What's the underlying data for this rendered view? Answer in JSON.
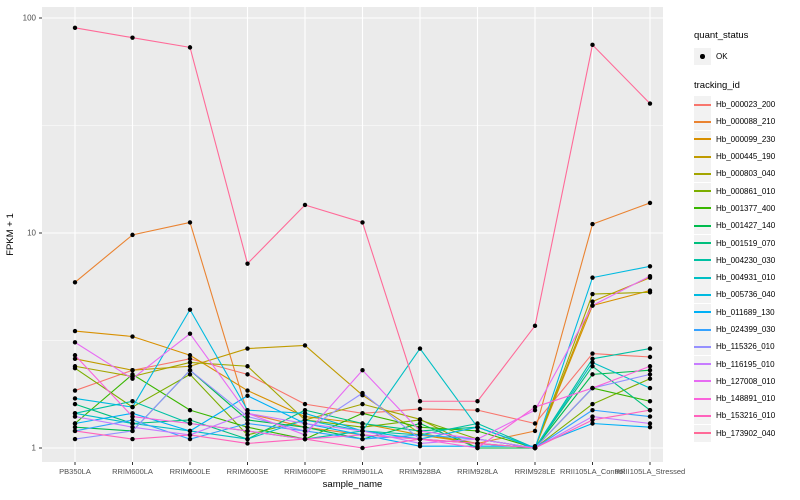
{
  "figure": {
    "background": "#FFFFFF",
    "panel_background": "#EBEBEB",
    "grid_color": "#FFFFFF",
    "tick_label_color": "#4D4D4D",
    "tick_mark_color": "#333333",
    "axis_title_color": "#000000",
    "point_color": "#000000",
    "legend_key_background": "#F2F2F2"
  },
  "legend": {
    "quant_status_title": "quant_status",
    "quant_status_ok_label": "OK",
    "tracking_id_title": "tracking_id"
  },
  "chart_data": {
    "type": "line",
    "title": "",
    "xlabel": "sample_name",
    "ylabel": "FPKM + 1",
    "y_scale": "log10",
    "y_ticks": [
      1,
      10,
      100
    ],
    "y_tick_labels": [
      "1",
      "10",
      "100"
    ],
    "y_minor_ticks": [
      3.162,
      31.62
    ],
    "ylim": [
      0.95,
      115
    ],
    "grid": true,
    "legend_position": "right",
    "legend_titles": [
      "quant_status",
      "tracking_id"
    ],
    "quant_status_levels": [
      "OK"
    ],
    "point_shape": "filled-circle",
    "categories": [
      "PB350LA",
      "RRIM600LA",
      "RRIM600LE",
      "RRIM600SE",
      "RRIM600PE",
      "RRIM901LA",
      "RRIM928BA",
      "RRIM928LA",
      "RRIM928LE",
      "RRII105LA_Control",
      "RRII105LA_Stressed"
    ],
    "series": [
      {
        "name": "Hb_000023_200",
        "color": "#F8766D",
        "values": [
          1.85,
          2.3,
          2.6,
          2.2,
          1.6,
          1.45,
          1.52,
          1.5,
          1.3,
          2.75,
          2.65
        ]
      },
      {
        "name": "Hb_000088_210",
        "color": "#EA8331",
        "values": [
          5.9,
          9.8,
          11.2,
          1.45,
          1.25,
          1.15,
          1.1,
          1.05,
          1.2,
          11.0,
          13.8
        ]
      },
      {
        "name": "Hb_000099_230",
        "color": "#D89000",
        "values": [
          3.5,
          3.3,
          2.7,
          1.85,
          1.4,
          1.3,
          1.15,
          1.05,
          1.0,
          4.6,
          5.4
        ]
      },
      {
        "name": "Hb_000445_190",
        "color": "#C09B00",
        "values": [
          2.6,
          2.3,
          2.4,
          2.9,
          3.0,
          1.76,
          1.17,
          1.05,
          1.0,
          4.8,
          6.2
        ]
      },
      {
        "name": "Hb_000803_040",
        "color": "#A3A500",
        "values": [
          2.4,
          2.15,
          2.5,
          2.4,
          1.35,
          1.6,
          1.36,
          1.0,
          1.0,
          5.2,
          5.3
        ]
      },
      {
        "name": "Hb_000861_010",
        "color": "#7CAE00",
        "values": [
          2.35,
          1.55,
          2.2,
          1.15,
          1.35,
          1.25,
          1.35,
          1.1,
          1.0,
          1.6,
          2.1
        ]
      },
      {
        "name": "Hb_001377_400",
        "color": "#39B600",
        "values": [
          1.3,
          2.2,
          1.5,
          1.25,
          1.1,
          1.45,
          1.25,
          1.2,
          1.0,
          1.9,
          1.65
        ]
      },
      {
        "name": "Hb_001427_140",
        "color": "#00BB4E",
        "values": [
          1.25,
          1.2,
          2.3,
          1.35,
          1.25,
          1.1,
          1.3,
          1.0,
          1.0,
          2.2,
          2.3
        ]
      },
      {
        "name": "Hb_001519_070",
        "color": "#00BF7D",
        "values": [
          1.6,
          1.3,
          1.35,
          1.1,
          1.5,
          1.3,
          1.2,
          1.25,
          1.0,
          2.4,
          1.5
        ]
      },
      {
        "name": "Hb_004230_030",
        "color": "#00C1A3",
        "values": [
          1.45,
          1.65,
          1.3,
          1.2,
          1.1,
          1.2,
          1.15,
          1.3,
          1.0,
          2.6,
          2.9
        ]
      },
      {
        "name": "Hb_004931_010",
        "color": "#00BFC4",
        "values": [
          1.45,
          1.3,
          1.2,
          1.1,
          1.35,
          1.2,
          2.9,
          1.25,
          1.0,
          2.5,
          1.9
        ]
      },
      {
        "name": "Hb_005736_040",
        "color": "#00BAE0",
        "values": [
          1.7,
          1.55,
          4.4,
          1.5,
          1.45,
          1.2,
          1.1,
          1.25,
          1.0,
          6.2,
          7.0
        ]
      },
      {
        "name": "Hb_011689_130",
        "color": "#00B0F6",
        "values": [
          1.3,
          1.45,
          1.2,
          1.75,
          1.3,
          1.15,
          1.02,
          1.02,
          1.02,
          1.3,
          1.25
        ]
      },
      {
        "name": "Hb_024399_030",
        "color": "#35A2FF",
        "values": [
          1.2,
          1.35,
          1.1,
          1.3,
          1.2,
          1.1,
          1.15,
          1.1,
          1.0,
          1.5,
          1.4
        ]
      },
      {
        "name": "Hb_115326_010",
        "color": "#9590FF",
        "values": [
          1.1,
          1.2,
          2.3,
          1.4,
          1.2,
          1.8,
          1.1,
          1.05,
          1.0,
          1.9,
          2.2
        ]
      },
      {
        "name": "Hb_116195_010",
        "color": "#C77CFF",
        "values": [
          1.4,
          1.25,
          1.15,
          1.45,
          1.3,
          1.2,
          1.05,
          1.1,
          1.0,
          1.4,
          1.3
        ]
      },
      {
        "name": "Hb_127008_010",
        "color": "#E76BF3",
        "values": [
          3.1,
          2.1,
          3.4,
          1.45,
          1.15,
          2.3,
          1.2,
          1.1,
          1.5,
          4.6,
          6.3
        ]
      },
      {
        "name": "Hb_148891_010",
        "color": "#FA62DB",
        "values": [
          2.7,
          1.4,
          1.3,
          1.2,
          1.1,
          1.15,
          1.1,
          1.0,
          1.55,
          1.9,
          2.4
        ]
      },
      {
        "name": "Hb_153216_010",
        "color": "#FF62BC",
        "values": [
          1.2,
          1.1,
          1.15,
          1.05,
          1.1,
          1.0,
          1.1,
          1.05,
          1.0,
          1.35,
          1.5
        ]
      },
      {
        "name": "Hb_173902_040",
        "color": "#FF6A98",
        "values": [
          90,
          81,
          73,
          7.2,
          13.5,
          11.2,
          1.65,
          1.65,
          3.7,
          75,
          40
        ]
      }
    ]
  }
}
